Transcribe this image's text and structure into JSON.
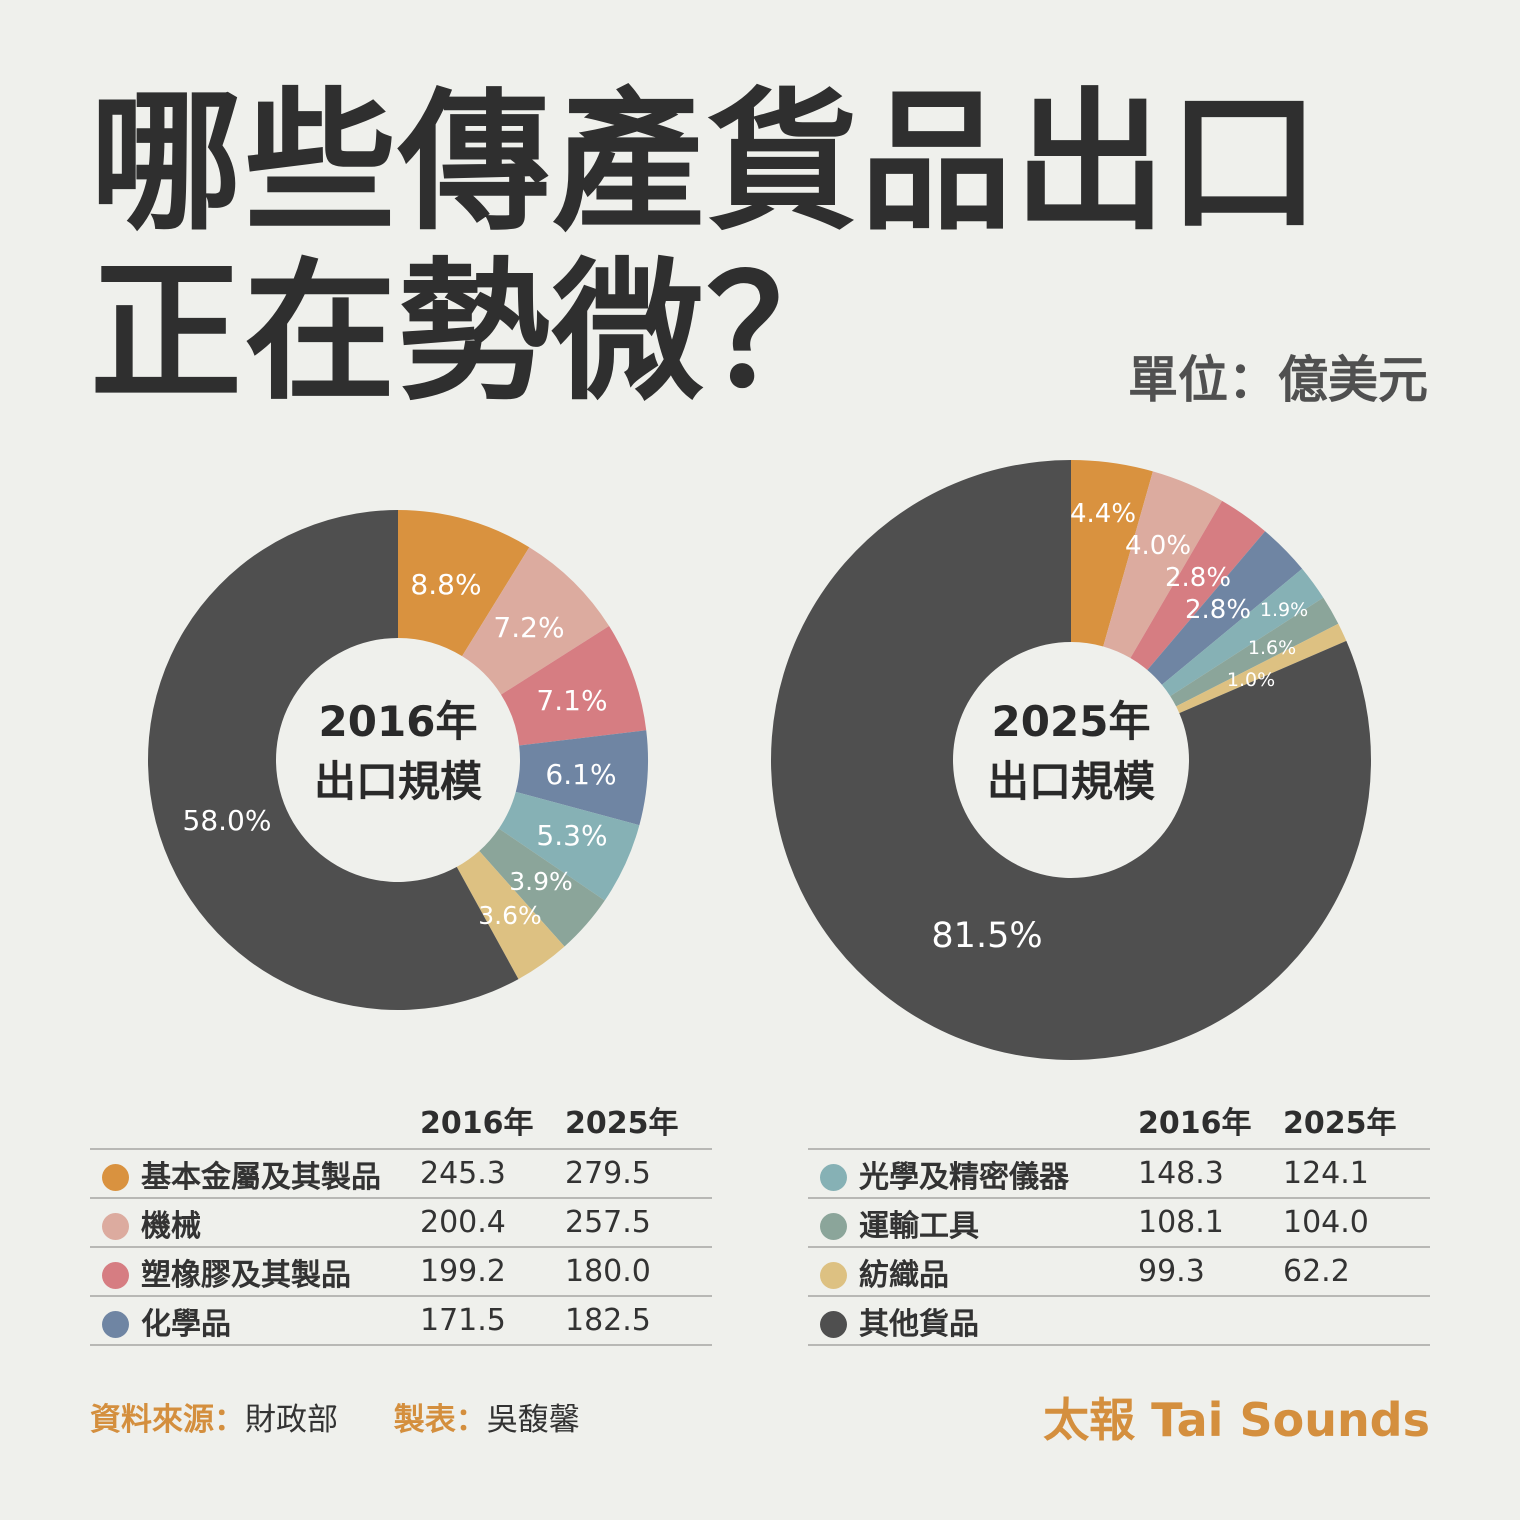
{
  "title": "哪些傳產貨品出口正在勢微？",
  "unit_label": "單位：億美元",
  "colors": {
    "basic_metals": "#d9923f",
    "machinery": "#dcab9f",
    "plastics": "#d67d82",
    "chemicals": "#6f85a3",
    "optical": "#86b1b5",
    "transport": "#8ba59a",
    "textiles": "#ddc182",
    "other": "#4f4f4f"
  },
  "chart_data": [
    {
      "type": "pie",
      "center_label": [
        "2016年",
        "出口規模"
      ],
      "slices": [
        {
          "key": "basic_metals",
          "value": 8.8,
          "label": "8.8%"
        },
        {
          "key": "machinery",
          "value": 7.2,
          "label": "7.2%"
        },
        {
          "key": "plastics",
          "value": 7.1,
          "label": "7.1%"
        },
        {
          "key": "chemicals",
          "value": 6.1,
          "label": "6.1%"
        },
        {
          "key": "optical",
          "value": 5.3,
          "label": "5.3%"
        },
        {
          "key": "transport",
          "value": 3.9,
          "label": "3.9%"
        },
        {
          "key": "textiles",
          "value": 3.6,
          "label": "3.6%"
        },
        {
          "key": "other",
          "value": 58.0,
          "label": "58.0%"
        }
      ]
    },
    {
      "type": "pie",
      "center_label": [
        "2025年",
        "出口規模"
      ],
      "slices": [
        {
          "key": "basic_metals",
          "value": 4.4,
          "label": "4.4%"
        },
        {
          "key": "machinery",
          "value": 4.0,
          "label": "4.0%"
        },
        {
          "key": "plastics",
          "value": 2.8,
          "label": "2.8%"
        },
        {
          "key": "chemicals",
          "value": 2.8,
          "label": "2.8%"
        },
        {
          "key": "optical",
          "value": 1.9,
          "label": "1.9%"
        },
        {
          "key": "transport",
          "value": 1.6,
          "label": "1.6%"
        },
        {
          "key": "textiles",
          "value": 1.0,
          "label": "1.0%"
        },
        {
          "key": "other",
          "value": 81.5,
          "label": "81.5%"
        }
      ]
    }
  ],
  "legend_left": {
    "headers": [
      "2016年",
      "2025年"
    ],
    "rows": [
      {
        "key": "basic_metals",
        "name": "基本金屬及其製品",
        "v2016": "245.3",
        "v2025": "279.5"
      },
      {
        "key": "machinery",
        "name": "機械",
        "v2016": "200.4",
        "v2025": "257.5"
      },
      {
        "key": "plastics",
        "name": "塑橡膠及其製品",
        "v2016": "199.2",
        "v2025": "180.0"
      },
      {
        "key": "chemicals",
        "name": "化學品",
        "v2016": "171.5",
        "v2025": "182.5"
      }
    ]
  },
  "legend_right": {
    "headers": [
      "2016年",
      "2025年"
    ],
    "rows": [
      {
        "key": "optical",
        "name": "光學及精密儀器",
        "v2016": "148.3",
        "v2025": "124.1"
      },
      {
        "key": "transport",
        "name": "運輸工具",
        "v2016": "108.1",
        "v2025": "104.0"
      },
      {
        "key": "textiles",
        "name": "紡織品",
        "v2016": "99.3",
        "v2025": "62.2"
      },
      {
        "key": "other",
        "name": "其他貨品",
        "v2016": "",
        "v2025": ""
      }
    ]
  },
  "footer": {
    "source_key": "資料來源：",
    "source_val": "財政部",
    "maker_key": "製表：",
    "maker_val": "吳馥馨",
    "brand": "太報 Tai Sounds"
  }
}
